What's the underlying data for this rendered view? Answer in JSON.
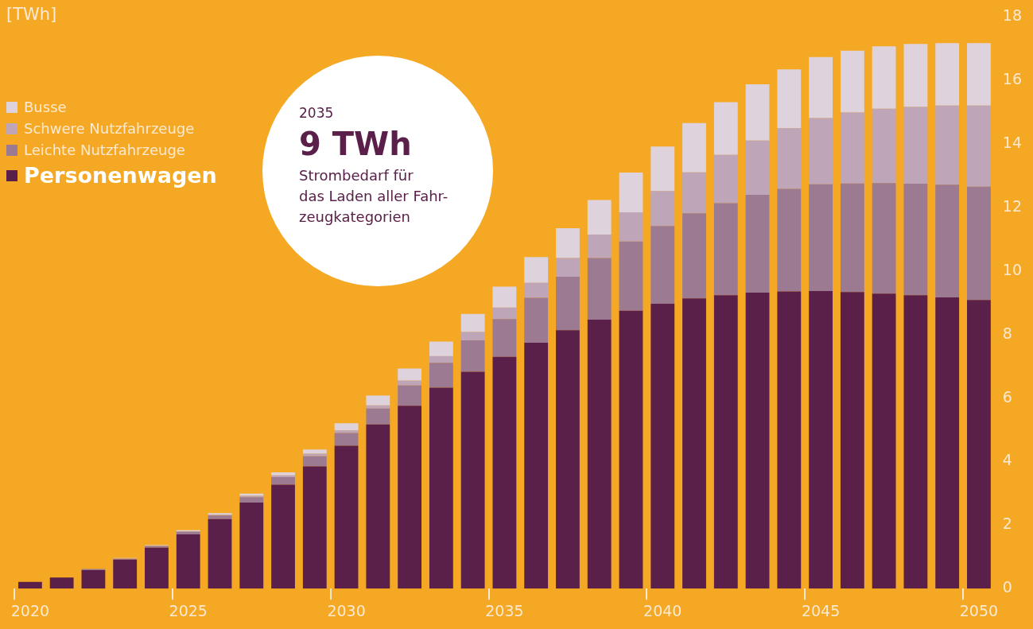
{
  "chart_data": {
    "type": "bar",
    "stacked": true,
    "ylabel": "[TWh]",
    "categories": [
      "2020",
      null,
      null,
      null,
      null,
      "2025",
      null,
      null,
      null,
      null,
      "2030",
      null,
      null,
      null,
      null,
      "2035",
      null,
      null,
      null,
      null,
      "2040",
      null,
      null,
      null,
      null,
      "2045",
      null,
      null,
      null,
      null,
      "2050"
    ],
    "series": [
      {
        "name": "Personenwagen",
        "color": "#5a2049",
        "values": [
          0.21,
          0.35,
          0.58,
          0.91,
          1.29,
          1.71,
          2.19,
          2.71,
          3.27,
          3.85,
          4.5,
          5.17,
          5.76,
          6.33,
          6.83,
          7.3,
          7.74,
          8.14,
          8.47,
          8.75,
          8.97,
          9.14,
          9.24,
          9.32,
          9.36,
          9.37,
          9.34,
          9.29,
          9.24,
          9.17,
          9.09
        ]
      },
      {
        "name": "Leichte Nutzfahrzeuge",
        "color": "#9b7a92",
        "values": [
          0,
          0,
          0.04,
          0.03,
          0.05,
          0.08,
          0.11,
          0.17,
          0.24,
          0.32,
          0.4,
          0.5,
          0.64,
          0.78,
          0.99,
          1.19,
          1.42,
          1.68,
          1.94,
          2.18,
          2.45,
          2.68,
          2.9,
          3.08,
          3.23,
          3.36,
          3.42,
          3.48,
          3.51,
          3.55,
          3.57
        ]
      },
      {
        "name": "Schwere Nutzfahrzeuge",
        "color": "#bea6b8",
        "values": [
          0,
          0,
          0,
          0.01,
          0.01,
          0.02,
          0.03,
          0.04,
          0.06,
          0.08,
          0.08,
          0.1,
          0.15,
          0.21,
          0.26,
          0.36,
          0.47,
          0.59,
          0.74,
          0.92,
          1.1,
          1.29,
          1.52,
          1.71,
          1.91,
          2.09,
          2.23,
          2.34,
          2.42,
          2.49,
          2.55
        ]
      },
      {
        "name": "Busse",
        "color": "#ded3dd",
        "values": [
          0,
          0,
          0,
          0.01,
          0.02,
          0.03,
          0.05,
          0.07,
          0.09,
          0.13,
          0.23,
          0.31,
          0.38,
          0.46,
          0.57,
          0.66,
          0.81,
          0.94,
          1.09,
          1.25,
          1.4,
          1.55,
          1.66,
          1.77,
          1.85,
          1.92,
          1.95,
          1.97,
          1.98,
          1.97,
          1.97
        ]
      }
    ],
    "ylim": [
      0,
      18
    ],
    "yticks": [
      0,
      2,
      4,
      6,
      8,
      10,
      12,
      14,
      16,
      18
    ],
    "grid": false,
    "legend": "top left",
    "annotations": [
      "2035",
      "9 TWh",
      "Strombedarf für\ndas Laden aller Fahr-\nzeugkategorien"
    ]
  }
}
